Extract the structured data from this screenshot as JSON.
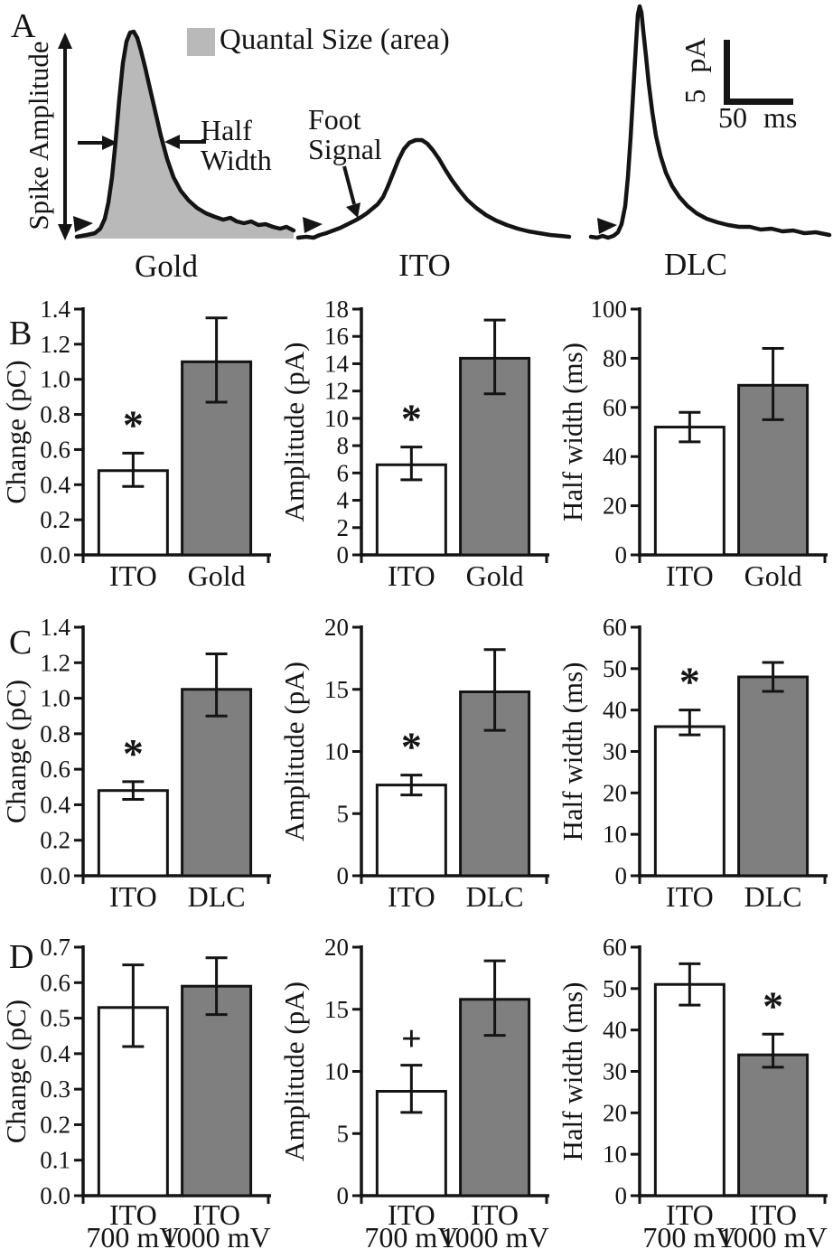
{
  "colors": {
    "ink": "#141414",
    "bar_gray": "#7f7f7f",
    "area_gray": "#b9b9b9",
    "bar_white": "#ffffff"
  },
  "panels": {
    "a": "A",
    "b": "B",
    "c": "C",
    "d": "D"
  },
  "panelA": {
    "spike_amplitude_label": "Spike Amplitude",
    "legend_label": "Quantal Size (area)",
    "half_width_line1": "Half",
    "half_width_line2": "Width",
    "foot_line1": "Foot",
    "foot_line2": "Signal",
    "scalebar_v": "5 pA",
    "scalebar_h": "50 ms",
    "traces": [
      {
        "label": "Gold",
        "filled": true,
        "foot_marker": [
          92,
          249
        ],
        "points": [
          [
            85,
            262
          ],
          [
            96,
            260
          ],
          [
            105,
            258
          ],
          [
            111,
            253
          ],
          [
            116,
            242
          ],
          [
            120,
            224
          ],
          [
            124,
            196
          ],
          [
            128,
            156
          ],
          [
            132,
            110
          ],
          [
            136,
            70
          ],
          [
            140,
            46
          ],
          [
            144,
            36
          ],
          [
            148,
            35
          ],
          [
            152,
            42
          ],
          [
            156,
            56
          ],
          [
            161,
            76
          ],
          [
            166,
            98
          ],
          [
            172,
            124
          ],
          [
            178,
            150
          ],
          [
            185,
            176
          ],
          [
            192,
            196
          ],
          [
            200,
            211
          ],
          [
            209,
            222
          ],
          [
            218,
            230
          ],
          [
            228,
            236
          ],
          [
            238,
            240
          ],
          [
            247,
            243
          ],
          [
            255,
            241
          ],
          [
            262,
            245
          ],
          [
            270,
            247
          ],
          [
            278,
            245
          ],
          [
            286,
            249
          ],
          [
            294,
            248
          ],
          [
            302,
            251
          ],
          [
            310,
            253
          ],
          [
            317,
            251
          ],
          [
            325,
            255
          ]
        ]
      },
      {
        "label": "ITO",
        "filled": false,
        "foot_marker": [
          346,
          250
        ],
        "points": [
          [
            330,
            263
          ],
          [
            339,
            262
          ],
          [
            347,
            263
          ],
          [
            354,
            260
          ],
          [
            361,
            258
          ],
          [
            369,
            255
          ],
          [
            377,
            252
          ],
          [
            385,
            248
          ],
          [
            393,
            244
          ],
          [
            400,
            240
          ],
          [
            406,
            236
          ],
          [
            412,
            231
          ],
          [
            418,
            226
          ],
          [
            424,
            218
          ],
          [
            429,
            207
          ],
          [
            435,
            192
          ],
          [
            441,
            177
          ],
          [
            447,
            165
          ],
          [
            453,
            158
          ],
          [
            460,
            155
          ],
          [
            467,
            155
          ],
          [
            473,
            159
          ],
          [
            479,
            166
          ],
          [
            486,
            176
          ],
          [
            493,
            188
          ],
          [
            500,
            199
          ],
          [
            508,
            210
          ],
          [
            517,
            221
          ],
          [
            527,
            230
          ],
          [
            538,
            238
          ],
          [
            549,
            244
          ],
          [
            561,
            249
          ],
          [
            573,
            253
          ],
          [
            585,
            256
          ],
          [
            597,
            258
          ],
          [
            609,
            260
          ],
          [
            620,
            261
          ],
          [
            630,
            262
          ]
        ]
      },
      {
        "label": "DLC",
        "filled": false,
        "foot_marker": [
          672,
          251
        ],
        "points": [
          [
            654,
            262
          ],
          [
            661,
            263
          ],
          [
            667,
            261
          ],
          [
            673,
            263
          ],
          [
            679,
            261
          ],
          [
            684,
            257
          ],
          [
            688,
            248
          ],
          [
            692,
            228
          ],
          [
            695,
            196
          ],
          [
            698,
            152
          ],
          [
            701,
            100
          ],
          [
            704,
            48
          ],
          [
            706,
            16
          ],
          [
            708,
            7
          ],
          [
            710,
            14
          ],
          [
            712,
            34
          ],
          [
            715,
            62
          ],
          [
            718,
            92
          ],
          [
            722,
            124
          ],
          [
            726,
            150
          ],
          [
            731,
            172
          ],
          [
            737,
            191
          ],
          [
            744,
            206
          ],
          [
            752,
            218
          ],
          [
            761,
            228
          ],
          [
            771,
            236
          ],
          [
            782,
            242
          ],
          [
            794,
            246
          ],
          [
            806,
            249
          ],
          [
            818,
            251
          ],
          [
            830,
            251
          ],
          [
            842,
            254
          ],
          [
            854,
            253
          ],
          [
            866,
            256
          ],
          [
            878,
            255
          ],
          [
            890,
            258
          ],
          [
            903,
            257
          ],
          [
            918,
            260
          ]
        ]
      }
    ]
  },
  "chart_data": [
    {
      "panel": "B",
      "type": "bar",
      "ylabel": "Change (pC)",
      "ylim": [
        0,
        1.4
      ],
      "step": 0.2,
      "decimals": 1,
      "categories": [
        [
          "ITO"
        ],
        [
          "Gold"
        ]
      ],
      "bars": [
        {
          "value": 0.48,
          "err": [
            0.39,
            0.58
          ],
          "fill": "white",
          "marker": "*"
        },
        {
          "value": 1.1,
          "err": [
            0.87,
            1.35
          ],
          "fill": "gray",
          "marker": ""
        }
      ]
    },
    {
      "panel": "B",
      "type": "bar",
      "ylabel": "Amplitude (pA)",
      "ylim": [
        0,
        18
      ],
      "step": 2,
      "decimals": 0,
      "categories": [
        [
          "ITO"
        ],
        [
          "Gold"
        ]
      ],
      "bars": [
        {
          "value": 6.6,
          "err": [
            5.5,
            7.9
          ],
          "fill": "white",
          "marker": "*"
        },
        {
          "value": 14.4,
          "err": [
            11.8,
            17.2
          ],
          "fill": "gray",
          "marker": ""
        }
      ]
    },
    {
      "panel": "B",
      "type": "bar",
      "ylabel": "Half width (ms)",
      "ylim": [
        0,
        100
      ],
      "step": 20,
      "decimals": 0,
      "categories": [
        [
          "ITO"
        ],
        [
          "Gold"
        ]
      ],
      "bars": [
        {
          "value": 52,
          "err": [
            46,
            58
          ],
          "fill": "white",
          "marker": ""
        },
        {
          "value": 69,
          "err": [
            55,
            84
          ],
          "fill": "gray",
          "marker": ""
        }
      ]
    },
    {
      "panel": "C",
      "type": "bar",
      "ylabel": "Change (pC)",
      "ylim": [
        0,
        1.4
      ],
      "step": 0.2,
      "decimals": 1,
      "categories": [
        [
          "ITO"
        ],
        [
          "DLC"
        ]
      ],
      "bars": [
        {
          "value": 0.48,
          "err": [
            0.43,
            0.53
          ],
          "fill": "white",
          "marker": "*"
        },
        {
          "value": 1.05,
          "err": [
            0.9,
            1.25
          ],
          "fill": "gray",
          "marker": ""
        }
      ]
    },
    {
      "panel": "C",
      "type": "bar",
      "ylabel": "Amplitude (pA)",
      "ylim": [
        0,
        20
      ],
      "step": 5,
      "decimals": 0,
      "categories": [
        [
          "ITO"
        ],
        [
          "DLC"
        ]
      ],
      "bars": [
        {
          "value": 7.3,
          "err": [
            6.5,
            8.1
          ],
          "fill": "white",
          "marker": "*"
        },
        {
          "value": 14.8,
          "err": [
            11.7,
            18.2
          ],
          "fill": "gray",
          "marker": ""
        }
      ]
    },
    {
      "panel": "C",
      "type": "bar",
      "ylabel": "Half width (ms)",
      "ylim": [
        0,
        60
      ],
      "step": 10,
      "decimals": 0,
      "categories": [
        [
          "ITO"
        ],
        [
          "DLC"
        ]
      ],
      "bars": [
        {
          "value": 36,
          "err": [
            34,
            40
          ],
          "fill": "white",
          "marker": "*"
        },
        {
          "value": 48,
          "err": [
            44.5,
            51.5
          ],
          "fill": "gray",
          "marker": ""
        }
      ]
    },
    {
      "panel": "D",
      "type": "bar",
      "ylabel": "Change (pC)",
      "ylim": [
        0,
        0.7
      ],
      "step": 0.1,
      "decimals": 1,
      "categories": [
        [
          "ITO",
          "700 mV"
        ],
        [
          "ITO",
          "1000 mV"
        ]
      ],
      "bars": [
        {
          "value": 0.53,
          "err": [
            0.42,
            0.65
          ],
          "fill": "white",
          "marker": ""
        },
        {
          "value": 0.59,
          "err": [
            0.51,
            0.67
          ],
          "fill": "gray",
          "marker": ""
        }
      ]
    },
    {
      "panel": "D",
      "type": "bar",
      "ylabel": "Amplitude (pA)",
      "ylim": [
        0,
        20
      ],
      "step": 5,
      "decimals": 0,
      "categories": [
        [
          "ITO",
          "700 mV"
        ],
        [
          "ITO",
          "1000 mV"
        ]
      ],
      "bars": [
        {
          "value": 8.4,
          "err": [
            6.7,
            10.5
          ],
          "fill": "white",
          "marker": "+"
        },
        {
          "value": 15.8,
          "err": [
            12.9,
            18.9
          ],
          "fill": "gray",
          "marker": ""
        }
      ]
    },
    {
      "panel": "D",
      "type": "bar",
      "ylabel": "Half width (ms)",
      "ylim": [
        0,
        60
      ],
      "step": 10,
      "decimals": 0,
      "categories": [
        [
          "ITO",
          "700 mV"
        ],
        [
          "ITO",
          "1000 mV"
        ]
      ],
      "bars": [
        {
          "value": 51,
          "err": [
            46,
            56
          ],
          "fill": "white",
          "marker": ""
        },
        {
          "value": 34,
          "err": [
            31,
            39
          ],
          "fill": "gray",
          "marker": "*"
        }
      ]
    }
  ]
}
